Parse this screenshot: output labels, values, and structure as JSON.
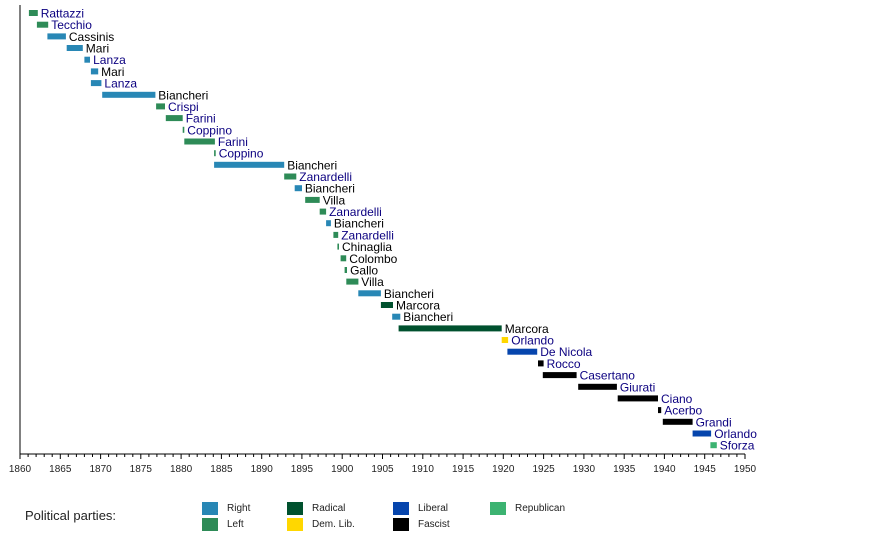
{
  "chart_data": {
    "type": "timeline",
    "title": "",
    "xlabel": "",
    "ylabel": "",
    "xlim": [
      1860,
      1950
    ],
    "x_ticks": [
      1860,
      1865,
      1870,
      1875,
      1880,
      1885,
      1890,
      1895,
      1900,
      1905,
      1910,
      1915,
      1920,
      1925,
      1930,
      1935,
      1940,
      1945,
      1950
    ],
    "minor_tick_step": 1,
    "grid": false,
    "colors": {
      "Right": "#2887b5",
      "Left": "#2e8b57",
      "Radical": "#00512e",
      "Dem. Lib.": "#ffd700",
      "Liberal": "#0645ad",
      "Fascist": "#000000",
      "Republican": "#3cb371"
    },
    "name_colors": {
      "link": "#0b0080",
      "plain": "#000000"
    },
    "entries": [
      {
        "name": "Rattazzi",
        "party": "Left",
        "start": 1861.1,
        "end": 1862.2,
        "link": true
      },
      {
        "name": "Tecchio",
        "party": "Left",
        "start": 1862.1,
        "end": 1863.5,
        "link": true
      },
      {
        "name": "Cassinis",
        "party": "Right",
        "start": 1863.4,
        "end": 1865.7,
        "link": false
      },
      {
        "name": "Mari",
        "party": "Right",
        "start": 1865.8,
        "end": 1867.8,
        "link": false
      },
      {
        "name": "Lanza",
        "party": "Right",
        "start": 1868.0,
        "end": 1868.7,
        "link": true
      },
      {
        "name": "Mari",
        "party": "Right",
        "start": 1868.8,
        "end": 1869.7,
        "link": false
      },
      {
        "name": "Lanza",
        "party": "Right",
        "start": 1868.8,
        "end": 1870.1,
        "link": true
      },
      {
        "name": "Biancheri",
        "party": "Right",
        "start": 1870.2,
        "end": 1876.8,
        "link": false
      },
      {
        "name": "Crispi",
        "party": "Left",
        "start": 1876.9,
        "end": 1878.0,
        "link": true
      },
      {
        "name": "Farini",
        "party": "Left",
        "start": 1878.1,
        "end": 1880.2,
        "link": true
      },
      {
        "name": "Coppino",
        "party": "Left",
        "start": 1880.2,
        "end": 1880.4,
        "link": true
      },
      {
        "name": "Farini",
        "party": "Left",
        "start": 1880.4,
        "end": 1884.2,
        "link": true
      },
      {
        "name": "Coppino",
        "party": "Left",
        "start": 1884.1,
        "end": 1884.3,
        "link": true
      },
      {
        "name": "Biancheri",
        "party": "Right",
        "start": 1884.1,
        "end": 1892.8,
        "link": false
      },
      {
        "name": "Zanardelli",
        "party": "Left",
        "start": 1892.8,
        "end": 1894.3,
        "link": true
      },
      {
        "name": "Biancheri",
        "party": "Right",
        "start": 1894.1,
        "end": 1895.0,
        "link": false
      },
      {
        "name": "Villa",
        "party": "Left",
        "start": 1895.4,
        "end": 1897.2,
        "link": false
      },
      {
        "name": "Zanardelli",
        "party": "Left",
        "start": 1897.2,
        "end": 1898.0,
        "link": true
      },
      {
        "name": "Biancheri",
        "party": "Right",
        "start": 1898.0,
        "end": 1898.6,
        "link": false
      },
      {
        "name": "Zanardelli",
        "party": "Left",
        "start": 1898.9,
        "end": 1899.5,
        "link": true
      },
      {
        "name": "Chinaglia",
        "party": "Left",
        "start": 1899.4,
        "end": 1899.6,
        "link": false
      },
      {
        "name": "Colombo",
        "party": "Left",
        "start": 1899.8,
        "end": 1900.5,
        "link": false
      },
      {
        "name": "Gallo",
        "party": "Left",
        "start": 1900.3,
        "end": 1900.6,
        "link": false
      },
      {
        "name": "Villa",
        "party": "Left",
        "start": 1900.5,
        "end": 1902.0,
        "link": false
      },
      {
        "name": "Biancheri",
        "party": "Right",
        "start": 1902.0,
        "end": 1904.8,
        "link": false
      },
      {
        "name": "Marcora",
        "party": "Radical",
        "start": 1904.8,
        "end": 1906.3,
        "link": false
      },
      {
        "name": "Biancheri",
        "party": "Right",
        "start": 1906.2,
        "end": 1907.2,
        "link": false
      },
      {
        "name": "Marcora",
        "party": "Radical",
        "start": 1907.0,
        "end": 1919.8,
        "link": false
      },
      {
        "name": "Orlando",
        "party": "Dem. Lib.",
        "start": 1919.8,
        "end": 1920.6,
        "link": true
      },
      {
        "name": "De Nicola",
        "party": "Liberal",
        "start": 1920.5,
        "end": 1924.2,
        "link": true
      },
      {
        "name": "Rocco",
        "party": "Fascist",
        "start": 1924.3,
        "end": 1925.0,
        "link": true
      },
      {
        "name": "Casertano",
        "party": "Fascist",
        "start": 1924.9,
        "end": 1929.1,
        "link": true
      },
      {
        "name": "Giurati",
        "party": "Fascist",
        "start": 1929.3,
        "end": 1934.1,
        "link": true
      },
      {
        "name": "Ciano",
        "party": "Fascist",
        "start": 1934.2,
        "end": 1939.2,
        "link": true
      },
      {
        "name": "Acerbo",
        "party": "Fascist",
        "start": 1939.2,
        "end": 1939.6,
        "link": true
      },
      {
        "name": "Grandi",
        "party": "Fascist",
        "start": 1939.8,
        "end": 1943.5,
        "link": true
      },
      {
        "name": "Orlando",
        "party": "Liberal",
        "start": 1943.5,
        "end": 1945.8,
        "link": true
      },
      {
        "name": "Sforza",
        "party": "Republican",
        "start": 1945.7,
        "end": 1946.5,
        "link": true
      }
    ]
  },
  "legend": {
    "title": "Political parties:",
    "items": [
      {
        "label": "Right",
        "color": "#2887b5"
      },
      {
        "label": "Left",
        "color": "#2e8b57"
      },
      {
        "label": "Radical",
        "color": "#00512e"
      },
      {
        "label": "Dem. Lib.",
        "color": "#ffd700"
      },
      {
        "label": "Liberal",
        "color": "#0645ad"
      },
      {
        "label": "Fascist",
        "color": "#000000"
      },
      {
        "label": "Republican",
        "color": "#3cb371"
      }
    ]
  }
}
